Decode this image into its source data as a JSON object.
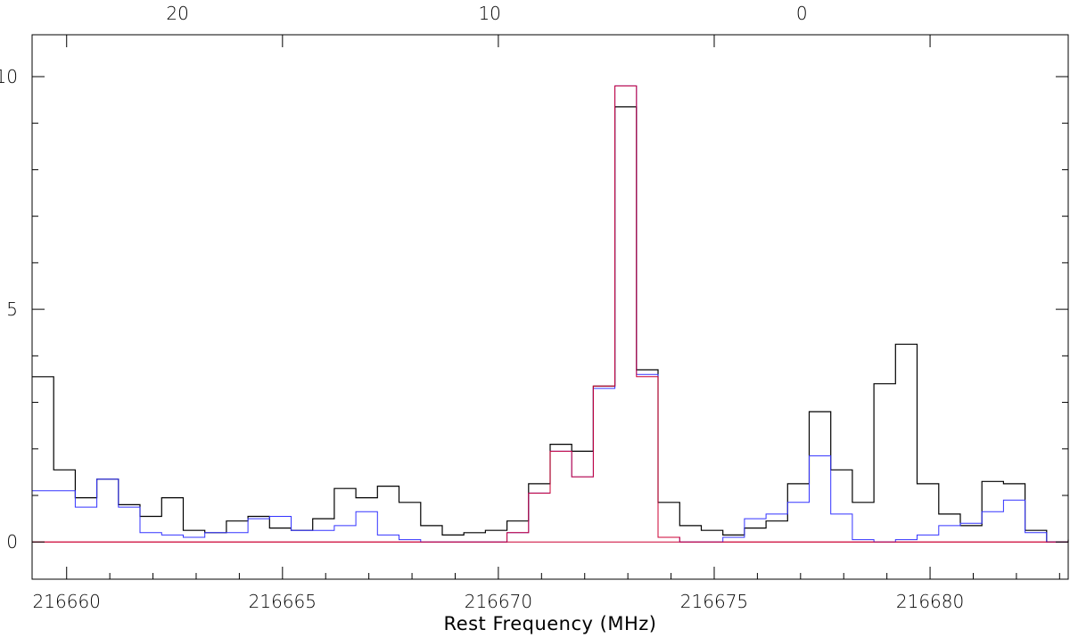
{
  "chart_data": {
    "type": "line",
    "style": "step",
    "xlabel": "Rest Frequency (MHz)",
    "ylabel": "",
    "xlim": [
      216659.2,
      216683.2
    ],
    "ylim": [
      -0.8,
      10.9
    ],
    "x_ticks": [
      216660,
      216665,
      216670,
      216675,
      216680
    ],
    "x_tick_labels": [
      "216660",
      "216665",
      "216670",
      "216675",
      "216680"
    ],
    "y_ticks": [
      0,
      5,
      10
    ],
    "y_tick_labels": [
      "0",
      "5",
      "10"
    ],
    "top_axis": {
      "label": "",
      "ticks": [
        20,
        10,
        0
      ],
      "tick_labels": [
        "20",
        "10",
        "0"
      ],
      "velocity_per_mhz": -1.383,
      "zero_at_frequency": 216677.03
    },
    "grid": false,
    "bin_edges_start": 216659.2,
    "bin_width": 0.5,
    "series": [
      {
        "color": "#000000",
        "values": [
          3.55,
          1.55,
          0.95,
          1.35,
          0.8,
          0.55,
          0.95,
          0.25,
          0.2,
          0.45,
          0.55,
          0.3,
          0.25,
          0.5,
          1.15,
          0.95,
          1.2,
          0.85,
          0.35,
          0.15,
          0.2,
          0.25,
          0.45,
          1.25,
          2.1,
          1.95,
          3.35,
          9.35,
          3.7,
          0.85,
          0.35,
          0.25,
          0.15,
          0.3,
          0.45,
          1.25,
          2.8,
          1.55,
          0.85,
          3.4,
          4.25,
          1.25,
          0.6,
          0.35,
          1.3,
          1.25,
          0.25,
          0.0,
          0.05
        ]
      },
      {
        "color": "#3333ff",
        "values": [
          1.1,
          1.1,
          0.75,
          1.35,
          0.75,
          0.2,
          0.15,
          0.1,
          0.2,
          0.2,
          0.5,
          0.55,
          0.25,
          0.25,
          0.35,
          0.65,
          0.15,
          0.05,
          0.0,
          0.0,
          0.0,
          0.0,
          0.2,
          1.05,
          1.95,
          1.4,
          3.3,
          9.8,
          3.6,
          0.1,
          0.0,
          0.0,
          0.1,
          0.5,
          0.6,
          0.85,
          1.85,
          0.6,
          0.05,
          0.0,
          0.05,
          0.15,
          0.35,
          0.4,
          0.65,
          0.9,
          0.2,
          0.0,
          0.05
        ]
      },
      {
        "color": "#cc0033",
        "values": [
          0,
          0,
          0,
          0,
          0,
          0,
          0,
          0,
          0,
          0,
          0,
          0,
          0,
          0,
          0,
          0,
          0,
          0,
          0,
          0,
          0,
          0,
          0.2,
          1.05,
          1.95,
          1.4,
          3.35,
          9.8,
          3.55,
          0.1,
          0,
          0,
          0,
          0,
          0,
          0,
          0,
          0,
          0,
          0,
          0,
          0,
          0,
          0,
          0,
          0,
          0,
          0,
          0
        ]
      }
    ]
  }
}
